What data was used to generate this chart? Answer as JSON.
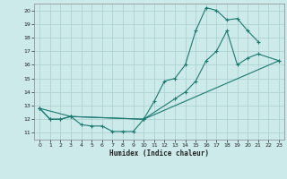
{
  "background_color": "#cceaea",
  "grid_color": "#aacccc",
  "line_color": "#1a7a70",
  "series1_x": [
    0,
    1,
    2,
    3,
    4,
    5,
    6,
    7,
    8,
    9,
    10,
    11,
    12,
    13,
    14,
    15,
    16,
    17,
    18,
    19,
    20,
    21
  ],
  "series1_y": [
    12.8,
    12.0,
    12.0,
    12.2,
    11.6,
    11.5,
    11.5,
    11.1,
    11.1,
    11.1,
    12.0,
    13.3,
    14.8,
    15.0,
    16.0,
    18.5,
    20.2,
    20.0,
    19.3,
    19.4,
    18.5,
    17.7
  ],
  "series2_x": [
    0,
    1,
    2,
    3,
    10,
    23
  ],
  "series2_y": [
    12.8,
    12.0,
    12.0,
    12.2,
    12.0,
    16.3
  ],
  "series3_x": [
    0,
    3,
    10,
    13,
    14,
    15,
    16,
    17,
    18,
    19,
    20,
    21,
    23
  ],
  "series3_y": [
    12.8,
    12.2,
    12.0,
    13.5,
    14.0,
    14.8,
    16.3,
    17.0,
    18.5,
    16.0,
    16.5,
    16.8,
    16.3
  ],
  "xlabel": "Humidex (Indice chaleur)",
  "xlim": [
    -0.5,
    23.5
  ],
  "ylim": [
    10.5,
    20.5
  ],
  "yticks": [
    11,
    12,
    13,
    14,
    15,
    16,
    17,
    18,
    19,
    20
  ],
  "xticks": [
    0,
    1,
    2,
    3,
    4,
    5,
    6,
    7,
    8,
    9,
    10,
    11,
    12,
    13,
    14,
    15,
    16,
    17,
    18,
    19,
    20,
    21,
    22,
    23
  ]
}
